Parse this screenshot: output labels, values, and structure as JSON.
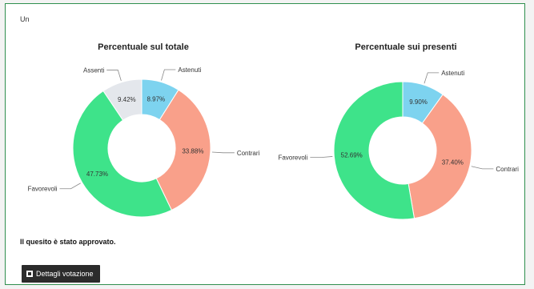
{
  "header": {
    "label": "Un"
  },
  "result_text": "Il quesito è stato approvato.",
  "details_button": {
    "label": "Dettagli votazione",
    "icon": "document-icon"
  },
  "colors": {
    "Astenuti": "#7dd3ef",
    "Contrari": "#f9a08a",
    "Favorevoli": "#3ee38a",
    "Assenti": "#e4e7ec"
  },
  "chart_data": [
    {
      "type": "pie",
      "title": "Percentuale sul totale",
      "slices": [
        {
          "label": "Astenuti",
          "value": 8.97,
          "text": "8.97%"
        },
        {
          "label": "Contrari",
          "value": 33.88,
          "text": "33.88%"
        },
        {
          "label": "Favorevoli",
          "value": 47.73,
          "text": "47.73%"
        },
        {
          "label": "Assenti",
          "value": 9.42,
          "text": "9.42%"
        }
      ]
    },
    {
      "type": "pie",
      "title": "Percentuale sui presenti",
      "slices": [
        {
          "label": "Astenuti",
          "value": 9.9,
          "text": "9.90%"
        },
        {
          "label": "Contrari",
          "value": 37.4,
          "text": "37.40%"
        },
        {
          "label": "Favorevoli",
          "value": 52.69,
          "text": "52.69%"
        }
      ]
    }
  ]
}
